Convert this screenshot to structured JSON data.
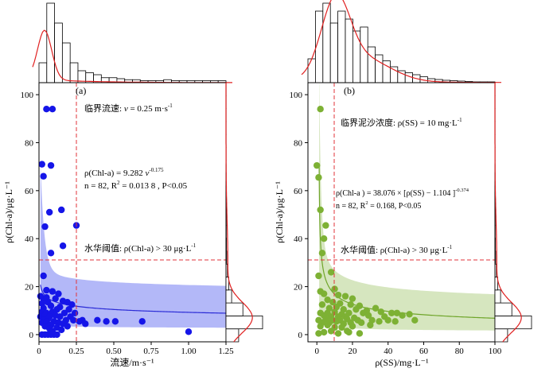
{
  "chart_data": [
    {
      "type": "scatter",
      "panel_label": "(a)",
      "xlabel": "流速/m·s⁻¹",
      "ylabel": "ρ(Chl-a)/μg·L⁻¹",
      "xlim": [
        0,
        1.25
      ],
      "ylim": [
        -3,
        105
      ],
      "x_ticks": [
        "0",
        "0.25",
        "0.50",
        "0.75",
        "1.00",
        "1.25"
      ],
      "y_ticks": [
        "0",
        "20",
        "40",
        "60",
        "80",
        "100"
      ],
      "point_color": "#1515e8",
      "fit_color": "#2b2bd6",
      "band_color": "#9aa0f5",
      "annotations": {
        "critical": {
          "prefix": "临界流速: ",
          "var": "v",
          "eq": " = 0.25 m·s",
          "sup": "-1"
        },
        "eq_line1": {
          "a": "ρ(Chl-a) = 9.282 ",
          "b": "v",
          "sup": "-0.175"
        },
        "eq_line2": {
          "a": "n = 82, R",
          "sup": "2",
          "b": " = 0.013 8 , P<0.05"
        },
        "threshold": {
          "a": "水华阈值: ρ(Chl-a) > 30 μg·L",
          "sup": "-1"
        }
      },
      "threshold_y": 30,
      "critical_x": 0.25,
      "fit": {
        "a": 9.282,
        "b": -0.175
      },
      "band": {
        "lower_ref": 3,
        "upper_ref": 18.5
      },
      "points": [
        [
          0.05,
          94
        ],
        [
          0.09,
          94
        ],
        [
          0.02,
          71
        ],
        [
          0.08,
          70.5
        ],
        [
          0.03,
          66
        ],
        [
          0.15,
          52
        ],
        [
          0.07,
          51
        ],
        [
          0.25,
          45.5
        ],
        [
          0.04,
          45
        ],
        [
          0.16,
          37
        ],
        [
          0.08,
          34
        ],
        [
          0.03,
          24.5
        ],
        [
          0.05,
          18.5
        ],
        [
          0.09,
          18
        ],
        [
          0.13,
          17
        ],
        [
          0.01,
          16
        ],
        [
          0.03,
          15
        ],
        [
          0.05,
          15.5
        ],
        [
          0.11,
          15
        ],
        [
          0.16,
          14
        ],
        [
          0.02,
          13
        ],
        [
          0.06,
          13.5
        ],
        [
          0.19,
          13.5
        ],
        [
          0.22,
          12.5
        ],
        [
          0.08,
          12
        ],
        [
          0.03,
          11
        ],
        [
          0.14,
          11.5
        ],
        [
          0.12,
          10.5
        ],
        [
          0.2,
          10.5
        ],
        [
          0.02,
          9.5
        ],
        [
          0.05,
          9
        ],
        [
          0.09,
          9.5
        ],
        [
          0.17,
          9
        ],
        [
          0.24,
          9
        ],
        [
          0.01,
          7.5
        ],
        [
          0.04,
          8
        ],
        [
          0.07,
          7.5
        ],
        [
          0.11,
          8
        ],
        [
          0.14,
          7.5
        ],
        [
          0.21,
          7.5
        ],
        [
          0.03,
          6
        ],
        [
          0.06,
          6.5
        ],
        [
          0.1,
          5.5
        ],
        [
          0.18,
          6
        ],
        [
          0.23,
          6
        ],
        [
          0.29,
          6
        ],
        [
          0.02,
          5
        ],
        [
          0.05,
          5.5
        ],
        [
          0.13,
          5
        ],
        [
          0.27,
          5.5
        ],
        [
          0.39,
          6
        ],
        [
          0.45,
          5.5
        ],
        [
          0.51,
          5.5
        ],
        [
          0.69,
          5.5
        ],
        [
          0.31,
          4.5
        ],
        [
          0.08,
          4
        ],
        [
          0.16,
          4.5
        ],
        [
          0.04,
          3.5
        ],
        [
          0.12,
          3
        ],
        [
          0.07,
          2.5
        ],
        [
          0.02,
          0
        ],
        [
          0.04,
          0
        ],
        [
          0.06,
          0
        ],
        [
          0.08,
          0
        ],
        [
          0.1,
          0
        ],
        [
          0.12,
          0
        ],
        [
          1.0,
          1.2
        ],
        [
          0.15,
          2
        ],
        [
          0.19,
          3.5
        ],
        [
          0.09,
          1.5
        ]
      ],
      "hist_x": [
        2,
        8,
        6,
        4,
        2,
        1.2,
        1,
        0.8,
        0.5,
        0.5,
        0.4,
        0.3,
        0.3,
        0.2,
        0.2,
        0.2,
        0.3,
        0.2,
        0.2,
        0.2,
        0.2,
        0.2,
        0.2,
        0.2
      ],
      "hist_y": [
        9,
        26,
        12,
        4,
        2,
        1,
        0.5,
        0.3,
        0.2,
        0.2,
        0.2,
        0.1,
        0.1,
        0.1,
        0.1,
        0.1,
        0.1,
        0.1,
        0.1,
        0.1
      ]
    },
    {
      "type": "scatter",
      "panel_label": "(b)",
      "xlabel": "ρ(SS)/mg·L⁻¹",
      "ylabel": "ρ(Chl-a)/μg·L⁻¹",
      "xlim": [
        -5,
        100
      ],
      "ylim": [
        -3,
        105
      ],
      "x_ticks": [
        "0",
        "20",
        "40",
        "60",
        "80",
        "100"
      ],
      "y_ticks": [
        "0",
        "20",
        "40",
        "60",
        "80",
        "100"
      ],
      "point_color": "#7db134",
      "fit_color": "#6fa52a",
      "band_color": "#c8deaa",
      "annotations": {
        "critical": {
          "a": "临界泥沙浓度: ρ(SS) = 10 mg·L",
          "sup": "-1"
        },
        "eq_line1": {
          "a": "ρ(Chl-a ) = 38.076 × [ρ(SS) − 1.104 ]",
          "sup": "-0.374"
        },
        "eq_line2": {
          "a": "n = 82, R",
          "sup": "2",
          "b": " = 0.168, P<0.05"
        },
        "threshold": {
          "a": "水华阈值:  ρ(Chl-a) > 30 μg·L",
          "sup": "-1"
        }
      },
      "threshold_y": 30,
      "critical_x": 10,
      "fit": {
        "a": 38.076,
        "c": 1.104,
        "b": -0.374
      },
      "band": {
        "lower_ref": 2,
        "upper_ref": 15
      },
      "points": [
        [
          2,
          94
        ],
        [
          0,
          70.5
        ],
        [
          1,
          65.5
        ],
        [
          2,
          52
        ],
        [
          5,
          45.5
        ],
        [
          4,
          40
        ],
        [
          3,
          34
        ],
        [
          1,
          24.5
        ],
        [
          8,
          26
        ],
        [
          2,
          18
        ],
        [
          10,
          19
        ],
        [
          4,
          17
        ],
        [
          12,
          16.5
        ],
        [
          16,
          16
        ],
        [
          20,
          15
        ],
        [
          6,
          14.5
        ],
        [
          9,
          13.5
        ],
        [
          13,
          13
        ],
        [
          19,
          12.5
        ],
        [
          24,
          12
        ],
        [
          3,
          12.5
        ],
        [
          7,
          11
        ],
        [
          11,
          11.5
        ],
        [
          15,
          10.5
        ],
        [
          22,
          10.5
        ],
        [
          28,
          10
        ],
        [
          33,
          11
        ],
        [
          2,
          9
        ],
        [
          6,
          9
        ],
        [
          10,
          9.5
        ],
        [
          14,
          8.5
        ],
        [
          18,
          9
        ],
        [
          26,
          9
        ],
        [
          36,
          9.5
        ],
        [
          42,
          9
        ],
        [
          45,
          9
        ],
        [
          4,
          8
        ],
        [
          8,
          7.5
        ],
        [
          12,
          7.5
        ],
        [
          16,
          7.5
        ],
        [
          21,
          7
        ],
        [
          29,
          8
        ],
        [
          38,
          7.5
        ],
        [
          48,
          8
        ],
        [
          52,
          8.5
        ],
        [
          1,
          6
        ],
        [
          5,
          6.5
        ],
        [
          9,
          6
        ],
        [
          13,
          6
        ],
        [
          17,
          6.5
        ],
        [
          23,
          6
        ],
        [
          31,
          6
        ],
        [
          40,
          6
        ],
        [
          55,
          6
        ],
        [
          3,
          5
        ],
        [
          7,
          5
        ],
        [
          11,
          5.5
        ],
        [
          15,
          4.5
        ],
        [
          19,
          5
        ],
        [
          25,
          5
        ],
        [
          35,
          5.5
        ],
        [
          44,
          5.5
        ],
        [
          2,
          3.5
        ],
        [
          6,
          4
        ],
        [
          10,
          3
        ],
        [
          14,
          3
        ],
        [
          20,
          3.5
        ],
        [
          30,
          4
        ],
        [
          1,
          0.5
        ],
        [
          4,
          1
        ],
        [
          8,
          1.5
        ],
        [
          12,
          0.5
        ],
        [
          18,
          1
        ],
        [
          24,
          0.5
        ],
        [
          17,
          1.5
        ]
      ],
      "hist_x": [
        6,
        18,
        20,
        15,
        18,
        16,
        13,
        14,
        9,
        7,
        5.5,
        4,
        3,
        2.5,
        2,
        1.5,
        1,
        0.8,
        0.6,
        0.5,
        0.4,
        0.3,
        0.2,
        0.2,
        0.2
      ],
      "hist_y": [
        9,
        26,
        12,
        4,
        2,
        1,
        0.5,
        0.3,
        0.2,
        0.2,
        0.2,
        0.1,
        0.1,
        0.1,
        0.1,
        0.1,
        0.1,
        0.1,
        0.1,
        0.1
      ]
    }
  ]
}
